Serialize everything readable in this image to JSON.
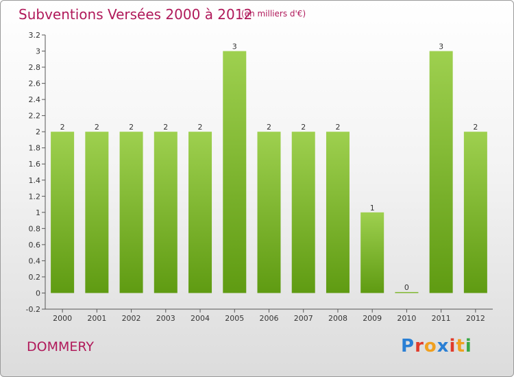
{
  "header": {
    "title": "Subventions Versées 2000 à 2012",
    "subtitle": "(en milliers d'€)"
  },
  "footer": {
    "commune": "DOMMERY",
    "logo": {
      "text": "Proxiti",
      "letter_colors": [
        "#2a7fd4",
        "#e03b2b",
        "#f0a020",
        "#2a7fd4",
        "#e03b2b",
        "#f0a020",
        "#39a845"
      ]
    }
  },
  "colors": {
    "accent": "#b0195a",
    "bar_light": "#9ed04f",
    "bar_dark": "#5f9b12"
  },
  "chart_data": {
    "type": "bar",
    "title": "Subventions Versées 2000 à 2012",
    "subtitle": "(en milliers d'€)",
    "xlabel": "",
    "ylabel": "",
    "categories": [
      "2000",
      "2001",
      "2002",
      "2003",
      "2004",
      "2005",
      "2006",
      "2007",
      "2008",
      "2009",
      "2010",
      "2011",
      "2012"
    ],
    "values": [
      2,
      2,
      2,
      2,
      2,
      3,
      2,
      2,
      2,
      1,
      0,
      3,
      2
    ],
    "data_labels": [
      "2",
      "2",
      "2",
      "2",
      "2",
      "3",
      "2",
      "2",
      "2",
      "1",
      "0",
      "3",
      "2"
    ],
    "ylim": [
      -0.2,
      3.2
    ],
    "yticks": [
      "-0.2",
      "0",
      "0.2",
      "0.4",
      "0.6",
      "0.8",
      "1",
      "1.2",
      "1.4",
      "1.6",
      "1.8",
      "2",
      "2.2",
      "2.4",
      "2.6",
      "2.8",
      "3",
      "3.2"
    ],
    "grid": false,
    "legend": "none"
  }
}
